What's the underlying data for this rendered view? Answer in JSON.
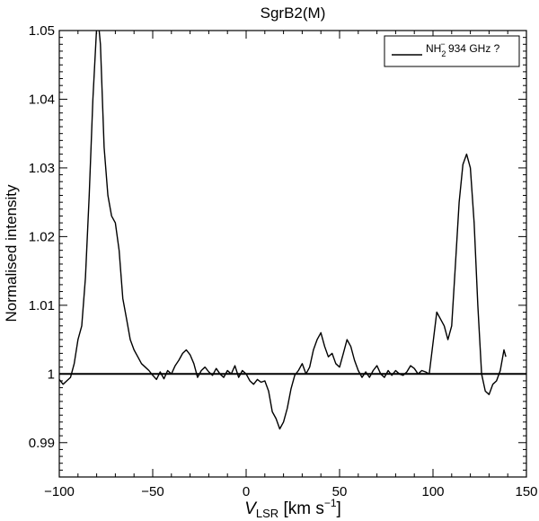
{
  "chart_data": {
    "type": "line",
    "title": "SgrB2(M)",
    "xlabel": {
      "main": "V",
      "sub": "LSR",
      "unit_open": " [km s",
      "unit_sup": "−1",
      "unit_close": "]"
    },
    "ylabel": "Normalised intensity",
    "xlim": [
      -100,
      150
    ],
    "ylim": [
      0.985,
      1.05
    ],
    "x_ticks": [
      -100,
      -50,
      0,
      50,
      100,
      150
    ],
    "x_tick_labels": [
      "−100",
      "−50",
      "0",
      "50",
      "100",
      "150"
    ],
    "y_ticks": [
      0.99,
      1.0,
      1.01,
      1.02,
      1.03,
      1.04,
      1.05
    ],
    "y_tick_labels": [
      "0.99",
      "1",
      "1.01",
      "1.02",
      "1.03",
      "1.04",
      "1.05"
    ],
    "baseline": 1.0,
    "grid": false,
    "legend": {
      "position": "top-right",
      "label_main": "NH",
      "label_sub": "2",
      "label_sup": "−",
      "label_rest": " 934 GHz ?"
    },
    "series": [
      {
        "color": "#000000",
        "x": [
          -100,
          -98,
          -96,
          -94,
          -92,
          -90,
          -88,
          -86,
          -84,
          -82,
          -80,
          -79,
          -78,
          -76,
          -74,
          -72,
          -70,
          -68,
          -66,
          -64,
          -62,
          -60,
          -58,
          -56,
          -54,
          -52,
          -50,
          -48,
          -46,
          -44,
          -42,
          -40,
          -38,
          -36,
          -34,
          -32,
          -30,
          -28,
          -26,
          -24,
          -22,
          -20,
          -18,
          -16,
          -14,
          -12,
          -10,
          -8,
          -6,
          -4,
          -2,
          0,
          2,
          4,
          6,
          8,
          10,
          12,
          14,
          16,
          18,
          20,
          22,
          24,
          26,
          28,
          30,
          32,
          34,
          36,
          38,
          40,
          42,
          44,
          46,
          48,
          50,
          52,
          54,
          56,
          58,
          60,
          62,
          64,
          66,
          68,
          70,
          72,
          74,
          76,
          78,
          80,
          82,
          84,
          86,
          88,
          90,
          92,
          94,
          96,
          98,
          100,
          102,
          104,
          106,
          108,
          110,
          112,
          114,
          116,
          118,
          120,
          122,
          124,
          126,
          128,
          130,
          132,
          134,
          136,
          138,
          139
        ],
        "y": [
          0.9992,
          0.9985,
          0.999,
          0.9995,
          1.0015,
          1.005,
          1.007,
          1.014,
          1.026,
          1.04,
          1.0505,
          1.051,
          1.048,
          1.033,
          1.026,
          1.023,
          1.022,
          1.018,
          1.011,
          1.008,
          1.005,
          1.0035,
          1.0025,
          1.0015,
          1.001,
          1.0005,
          0.9998,
          0.9992,
          1.0003,
          0.9993,
          1.0005,
          1.0,
          1.0012,
          1.002,
          1.003,
          1.0035,
          1.0028,
          1.0015,
          0.9995,
          1.0005,
          1.001,
          1.0003,
          0.9998,
          1.0008,
          1.0,
          0.9995,
          1.0005,
          1.0,
          1.0012,
          0.9995,
          1.0005,
          1.0,
          0.999,
          0.9985,
          0.9992,
          0.9988,
          0.999,
          0.9975,
          0.9945,
          0.9935,
          0.992,
          0.993,
          0.995,
          0.9978,
          0.9998,
          1.0005,
          1.0015,
          1.0,
          1.001,
          1.0035,
          1.005,
          1.006,
          1.004,
          1.0025,
          1.003,
          1.0015,
          1.001,
          1.003,
          1.005,
          1.004,
          1.002,
          1.0005,
          0.9995,
          1.0003,
          0.9995,
          1.0005,
          1.0012,
          1.0,
          0.9995,
          1.0005,
          0.9998,
          1.0005,
          1.0,
          0.9998,
          1.0003,
          1.0012,
          1.0008,
          1.0,
          1.0005,
          1.0003,
          1.0,
          1.0045,
          1.009,
          1.008,
          1.007,
          1.005,
          1.007,
          1.016,
          1.025,
          1.0305,
          1.032,
          1.03,
          1.022,
          1.01,
          1.0,
          0.9975,
          0.997,
          0.9985,
          0.999,
          1.0005,
          1.0035,
          1.0025
        ]
      }
    ]
  }
}
